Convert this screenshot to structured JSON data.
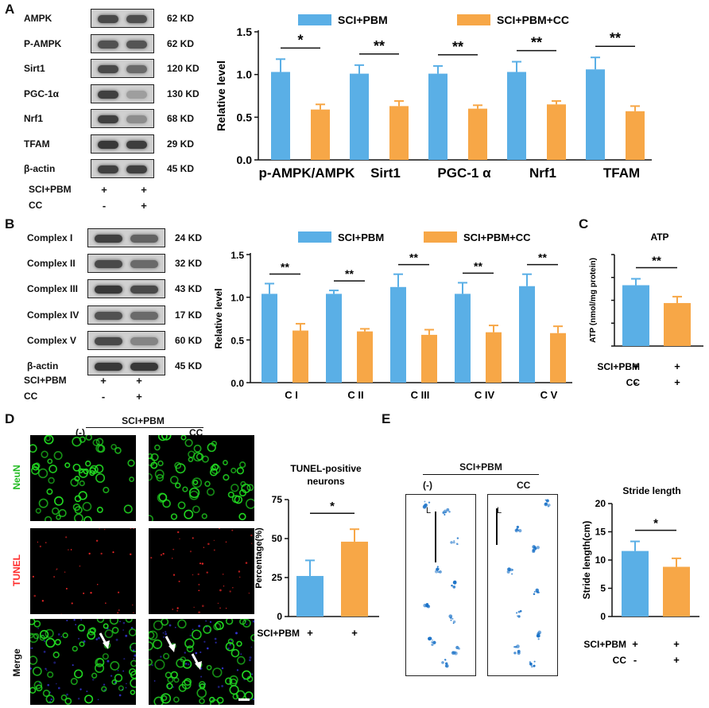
{
  "panels": {
    "A": "A",
    "B": "B",
    "C": "C",
    "D": "D",
    "E": "E"
  },
  "colors": {
    "blue": "#5aafe6",
    "orange": "#f7a747",
    "green": "#22dd22",
    "red": "#ff2a2a",
    "footprint": "#1c73c8"
  },
  "panelA": {
    "blots": [
      {
        "name": "AMPK",
        "size": "62 KD",
        "d": [
          0.75,
          0.72
        ]
      },
      {
        "name": "P-AMPK",
        "size": "62 KD",
        "d": [
          0.7,
          0.68
        ]
      },
      {
        "name": "Sirt1",
        "size": "120 KD",
        "d": [
          0.75,
          0.55
        ]
      },
      {
        "name": "PGC-1α",
        "size": "130 KD",
        "d": [
          0.8,
          0.25
        ]
      },
      {
        "name": "Nrf1",
        "size": "68 KD",
        "d": [
          0.8,
          0.35
        ]
      },
      {
        "name": "TFAM",
        "size": "29 KD",
        "d": [
          0.85,
          0.82
        ]
      },
      {
        "name": "β-actin",
        "size": "45 KD",
        "d": [
          0.8,
          0.8
        ]
      }
    ],
    "rows": [
      {
        "label": "SCI+PBM",
        "signs": [
          "+",
          "+"
        ]
      },
      {
        "label": "CC",
        "signs": [
          "-",
          "+"
        ]
      }
    ]
  },
  "panelB": {
    "blots": [
      {
        "name": "Complex I",
        "size": "24 KD",
        "d": [
          0.8,
          0.6
        ]
      },
      {
        "name": "Complex II",
        "size": "32 KD",
        "d": [
          0.75,
          0.55
        ]
      },
      {
        "name": "Complex III",
        "size": "43 KD",
        "d": [
          0.85,
          0.75
        ]
      },
      {
        "name": "Complex IV",
        "size": "17 KD",
        "d": [
          0.7,
          0.55
        ]
      },
      {
        "name": "Complex V",
        "size": "60 KD",
        "d": [
          0.75,
          0.4
        ]
      },
      {
        "name": "β-actin",
        "size": "45 KD",
        "d": [
          0.85,
          0.85
        ]
      }
    ],
    "rows": [
      {
        "label": "SCI+PBM",
        "signs": [
          "+",
          "+"
        ]
      },
      {
        "label": "CC",
        "signs": [
          "-",
          "+"
        ]
      }
    ]
  },
  "panelD": {
    "group": "SCI+PBM",
    "col1": "(-)",
    "col2": "CC",
    "rows": [
      "NeuN",
      "TUNEL",
      "Merge"
    ]
  },
  "panelE": {
    "group": "SCI+PBM",
    "col1": "(-)",
    "col2": "CC",
    "scale_label": "L"
  },
  "chart_data": [
    {
      "id": "A",
      "type": "bar",
      "legend": [
        "SCI+PBM",
        "SCI+PBM+CC"
      ],
      "categories": [
        "p-AMPK/AMPK",
        "Sirt1",
        "PGC-1 α",
        "Nrf1",
        "TFAM"
      ],
      "series": [
        {
          "name": "SCI+PBM",
          "values": [
            1.03,
            1.01,
            1.01,
            1.03,
            1.06
          ],
          "err": [
            0.15,
            0.1,
            0.09,
            0.12,
            0.14
          ]
        },
        {
          "name": "SCI+PBM+CC",
          "values": [
            0.59,
            0.63,
            0.6,
            0.65,
            0.57
          ],
          "err": [
            0.06,
            0.06,
            0.04,
            0.04,
            0.06
          ]
        }
      ],
      "sig": [
        "*",
        "**",
        "**",
        "**",
        "**"
      ],
      "ylabel": "Relative level",
      "yticks": [
        "0.0",
        "0.5",
        "1.0",
        "1.5"
      ],
      "ylim": [
        0,
        1.5
      ],
      "grid": false
    },
    {
      "id": "B",
      "type": "bar",
      "legend": [
        "SCI+PBM",
        "SCI+PBM+CC"
      ],
      "categories": [
        "C I",
        "C II",
        "C III",
        "C IV",
        "C V"
      ],
      "series": [
        {
          "name": "SCI+PBM",
          "values": [
            1.04,
            1.04,
            1.12,
            1.04,
            1.13
          ],
          "err": [
            0.12,
            0.04,
            0.15,
            0.13,
            0.14
          ]
        },
        {
          "name": "SCI+PBM+CC",
          "values": [
            0.61,
            0.6,
            0.56,
            0.59,
            0.58
          ],
          "err": [
            0.08,
            0.03,
            0.06,
            0.08,
            0.08
          ]
        }
      ],
      "sig": [
        "**",
        "**",
        "**",
        "**",
        "**"
      ],
      "ylabel": "Relative level",
      "yticks": [
        "0.0",
        "0.5",
        "1.0",
        "1.5"
      ],
      "ylim": [
        0,
        1.5
      ],
      "grid": false
    },
    {
      "id": "C",
      "type": "bar",
      "title": "ATP",
      "categories": [
        "SCI+PBM",
        "SCI+PBM+CC"
      ],
      "values": [
        133,
        94
      ],
      "err": [
        14,
        14
      ],
      "sig": "**",
      "ylabel": "ATP (nmol/mg protein)",
      "ylim": [
        0,
        200
      ],
      "rows": [
        {
          "label": "SCI+PBM",
          "signs": [
            "+",
            "+"
          ]
        },
        {
          "label": "CC",
          "signs": [
            "-",
            "+"
          ]
        }
      ]
    },
    {
      "id": "D",
      "type": "bar",
      "title": "TUNEL-positive neurons",
      "categories": [
        "SCI+PBM",
        "SCI+PBM+CC"
      ],
      "values": [
        26,
        48
      ],
      "err": [
        10,
        8
      ],
      "sig": "*",
      "ylabel": "Percentage(%)",
      "yticks": [
        "0",
        "25",
        "50",
        "75"
      ],
      "ylim": [
        0,
        75
      ],
      "rows": [
        {
          "label": "SCI+PBM",
          "signs": [
            "+",
            "+"
          ]
        },
        {
          "label": "CC",
          "signs": [
            "-",
            "+"
          ]
        }
      ]
    },
    {
      "id": "E",
      "type": "bar",
      "title": "Stride length",
      "categories": [
        "SCI+PBM",
        "SCI+PBM+CC"
      ],
      "values": [
        11.6,
        8.8
      ],
      "err": [
        1.7,
        1.5
      ],
      "sig": "*",
      "ylabel": "Stride length(cm)",
      "yticks": [
        "0",
        "5",
        "10",
        "15",
        "20"
      ],
      "ylim": [
        0,
        20
      ],
      "rows": [
        {
          "label": "SCI+PBM",
          "signs": [
            "+",
            "+"
          ]
        },
        {
          "label": "CC",
          "signs": [
            "-",
            "+"
          ]
        }
      ]
    }
  ]
}
